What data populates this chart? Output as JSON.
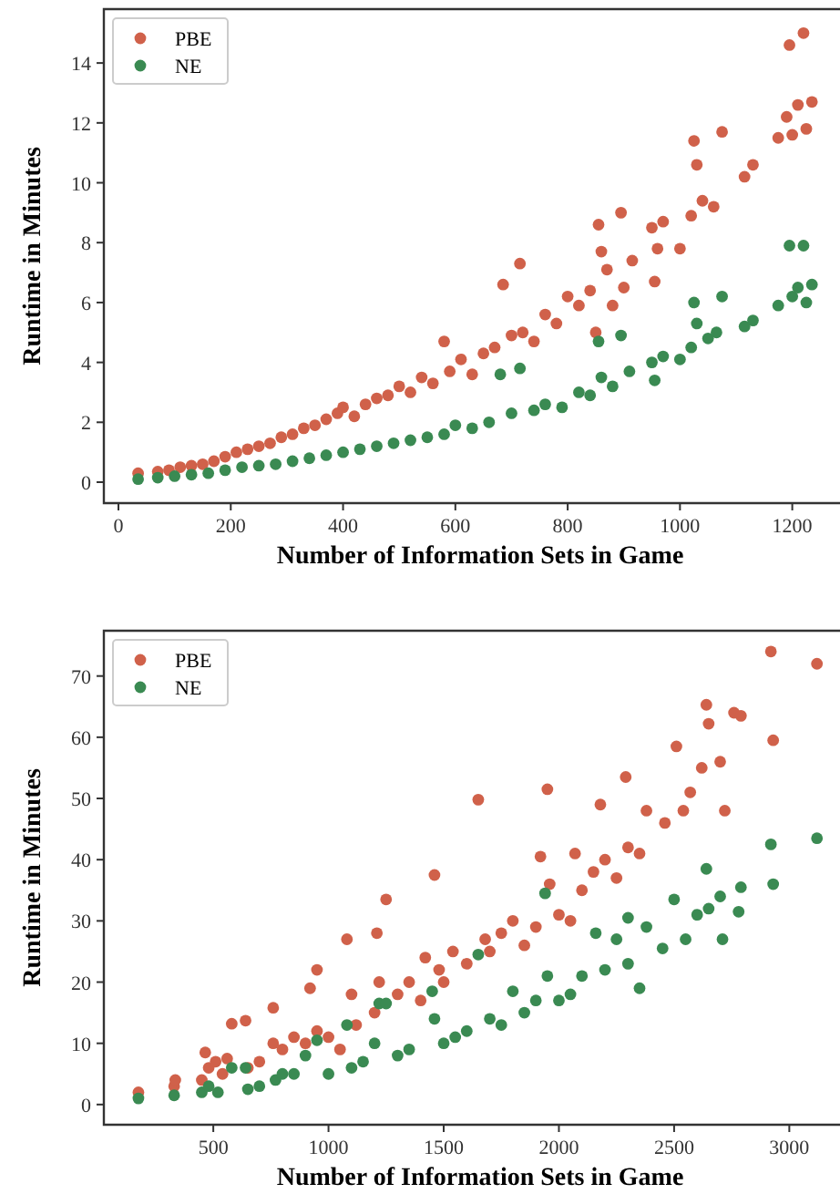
{
  "chart_data": [
    {
      "type": "scatter",
      "xlabel": "Number of Information Sets in Game",
      "ylabel": "Runtime in Minutes",
      "xlim": [
        -26,
        1285
      ],
      "ylim": [
        -0.7,
        15.8
      ],
      "xticks": [
        0,
        200,
        400,
        600,
        800,
        1000,
        1200
      ],
      "yticks": [
        0,
        2,
        4,
        6,
        8,
        10,
        12,
        14
      ],
      "legend": "top left",
      "marker": "circle",
      "grid": false,
      "series": [
        {
          "name": "PBE",
          "color": "#d0614a",
          "x": [
            35,
            70,
            90,
            110,
            130,
            150,
            170,
            190,
            210,
            230,
            250,
            270,
            290,
            310,
            330,
            350,
            370,
            390,
            400,
            420,
            440,
            460,
            480,
            500,
            520,
            540,
            560,
            580,
            590,
            610,
            630,
            650,
            670,
            685,
            700,
            715,
            720,
            740,
            760,
            780,
            800,
            820,
            840,
            850,
            855,
            860,
            870,
            880,
            895,
            900,
            915,
            950,
            955,
            960,
            970,
            1000,
            1020,
            1025,
            1030,
            1040,
            1060,
            1075,
            1115,
            1130,
            1175,
            1190,
            1195,
            1200,
            1210,
            1220,
            1225,
            1235
          ],
          "values": [
            0.3,
            0.35,
            0.4,
            0.5,
            0.55,
            0.6,
            0.7,
            0.85,
            1.0,
            1.1,
            1.2,
            1.3,
            1.5,
            1.6,
            1.8,
            1.9,
            2.1,
            2.3,
            2.5,
            2.2,
            2.6,
            2.8,
            2.9,
            3.2,
            3.0,
            3.5,
            3.3,
            4.7,
            3.7,
            4.1,
            3.6,
            4.3,
            4.5,
            6.6,
            4.9,
            7.3,
            5.0,
            4.7,
            5.6,
            5.3,
            6.2,
            5.9,
            6.4,
            5.0,
            8.6,
            7.7,
            7.1,
            5.9,
            9.0,
            6.5,
            7.4,
            8.5,
            6.7,
            7.8,
            8.7,
            7.8,
            8.9,
            11.4,
            10.6,
            9.4,
            9.2,
            11.7,
            10.2,
            10.6,
            11.5,
            12.2,
            14.6,
            11.6,
            12.6,
            15.0,
            11.8,
            12.7
          ]
        },
        {
          "name": "NE",
          "color": "#3a8a52",
          "x": [
            35,
            70,
            100,
            130,
            160,
            190,
            220,
            250,
            280,
            310,
            340,
            370,
            400,
            430,
            460,
            490,
            520,
            550,
            580,
            600,
            630,
            660,
            680,
            700,
            715,
            740,
            760,
            790,
            820,
            840,
            855,
            860,
            880,
            895,
            910,
            950,
            955,
            970,
            1000,
            1020,
            1025,
            1030,
            1050,
            1065,
            1075,
            1115,
            1130,
            1175,
            1195,
            1200,
            1210,
            1220,
            1225,
            1235
          ],
          "values": [
            0.1,
            0.15,
            0.2,
            0.25,
            0.3,
            0.4,
            0.5,
            0.55,
            0.6,
            0.7,
            0.8,
            0.9,
            1.0,
            1.1,
            1.2,
            1.3,
            1.4,
            1.5,
            1.6,
            1.9,
            1.8,
            2.0,
            3.6,
            2.3,
            3.8,
            2.4,
            2.6,
            2.5,
            3.0,
            2.9,
            4.7,
            3.5,
            3.2,
            4.9,
            3.7,
            4.0,
            3.4,
            4.2,
            4.1,
            4.5,
            6.0,
            5.3,
            4.8,
            5.0,
            6.2,
            5.2,
            5.4,
            5.9,
            7.9,
            6.2,
            6.5,
            7.9,
            6.0,
            6.6
          ]
        }
      ]
    },
    {
      "type": "scatter",
      "xlabel": "Number of Information Sets in Game",
      "ylabel": "Runtime in Minutes",
      "xlim": [
        25,
        3220
      ],
      "ylim": [
        -3.3,
        77.4
      ],
      "xticks": [
        500,
        1000,
        1500,
        2000,
        2500,
        3000
      ],
      "yticks": [
        0,
        10,
        20,
        30,
        40,
        50,
        60,
        70
      ],
      "legend": "top left",
      "marker": "circle",
      "grid": false,
      "series": [
        {
          "name": "PBE",
          "color": "#d0614a",
          "x": [
            175,
            330,
            335,
            450,
            465,
            480,
            510,
            540,
            560,
            580,
            640,
            650,
            700,
            760,
            760,
            800,
            850,
            900,
            920,
            950,
            950,
            1000,
            1050,
            1080,
            1100,
            1120,
            1200,
            1210,
            1220,
            1250,
            1300,
            1350,
            1400,
            1420,
            1460,
            1480,
            1500,
            1540,
            1600,
            1650,
            1680,
            1700,
            1750,
            1800,
            1850,
            1900,
            1920,
            1950,
            1960,
            2000,
            2050,
            2070,
            2100,
            2150,
            2180,
            2200,
            2250,
            2290,
            2300,
            2350,
            2380,
            2460,
            2510,
            2540,
            2570,
            2620,
            2640,
            2650,
            2700,
            2720,
            2760,
            2790,
            2920,
            2930,
            3120
          ],
          "values": [
            2,
            3,
            4,
            4,
            8.5,
            6,
            7,
            5,
            7.5,
            13.2,
            13.7,
            6,
            7,
            15.8,
            10,
            9,
            11,
            10,
            19,
            22,
            12,
            11,
            9,
            27,
            18,
            13,
            15,
            28,
            20,
            33.5,
            18,
            20,
            17,
            24,
            37.5,
            22,
            20,
            25,
            23,
            49.8,
            27,
            25,
            28,
            30,
            26,
            29,
            40.5,
            51.5,
            36,
            31,
            30,
            41,
            35,
            38,
            49,
            40,
            37,
            53.5,
            42,
            41,
            48,
            46,
            58.5,
            48,
            51,
            55,
            65.3,
            62.2,
            56,
            48,
            64,
            63.5,
            74,
            59.5,
            72
          ]
        },
        {
          "name": "NE",
          "color": "#3a8a52",
          "x": [
            175,
            330,
            450,
            480,
            520,
            580,
            640,
            650,
            700,
            770,
            800,
            850,
            900,
            950,
            1000,
            1080,
            1100,
            1150,
            1200,
            1220,
            1250,
            1300,
            1350,
            1450,
            1460,
            1500,
            1550,
            1600,
            1650,
            1700,
            1750,
            1800,
            1850,
            1900,
            1940,
            1950,
            2000,
            2050,
            2100,
            2160,
            2200,
            2250,
            2300,
            2300,
            2350,
            2380,
            2450,
            2500,
            2550,
            2600,
            2640,
            2650,
            2700,
            2710,
            2780,
            2790,
            2920,
            2930,
            3120
          ],
          "values": [
            1,
            1.5,
            2,
            3,
            2,
            6,
            6,
            2.5,
            3,
            4,
            5,
            5,
            8,
            10.5,
            5,
            13,
            6,
            7,
            10,
            16.5,
            16.5,
            8,
            9,
            18.5,
            14,
            10,
            11,
            12,
            24.5,
            14,
            13,
            18.5,
            15,
            17,
            34.5,
            21,
            17,
            18,
            21,
            28,
            22,
            27,
            23,
            30.5,
            19,
            29,
            25.5,
            33.5,
            27,
            31,
            38.5,
            32,
            34,
            27,
            31.5,
            35.5,
            42.5,
            36,
            43.5
          ]
        }
      ]
    }
  ]
}
